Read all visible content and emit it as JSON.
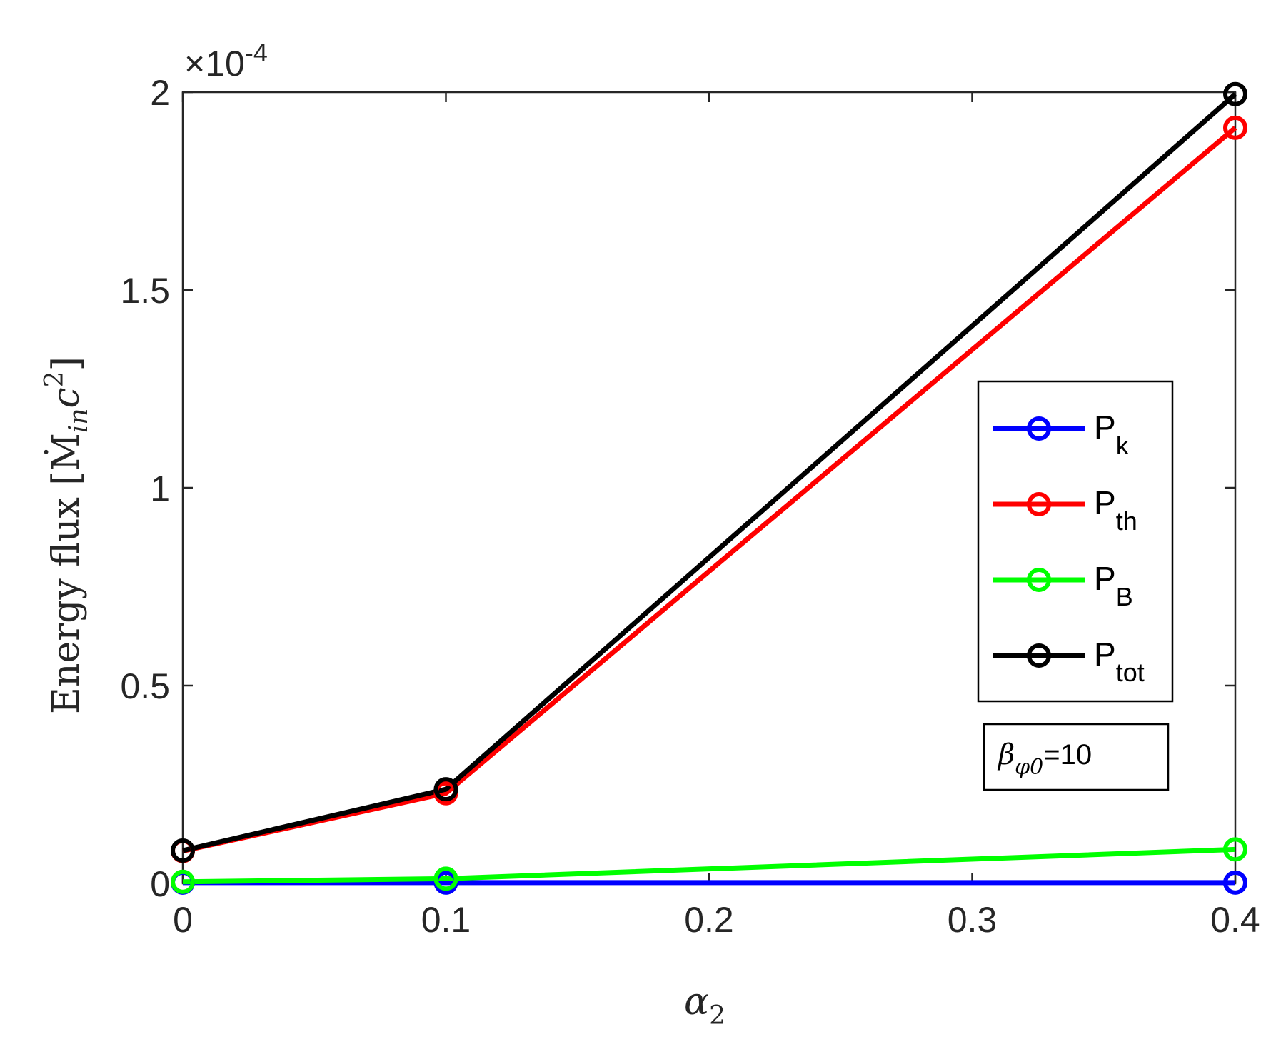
{
  "chart_data": {
    "type": "line",
    "x": [
      0,
      0.1,
      0.4
    ],
    "xlim": [
      0,
      0.4
    ],
    "ylim": [
      0,
      0.0002
    ],
    "x_ticks": [
      "0",
      "0.1",
      "0.2",
      "0.3",
      "0.4"
    ],
    "y_ticks": [
      "0",
      "0.5",
      "1",
      "1.5",
      "2"
    ],
    "y_exponent_label": "×10",
    "y_exponent_power": "-4",
    "xlabel_main": "α",
    "xlabel_sub": "2",
    "ylabel": "Energy flux [Ṁ",
    "ylabel_sub": "in",
    "ylabel_tail": "c",
    "ylabel_sup": "2",
    "ylabel_close": "]",
    "grid": false,
    "legend_position": "right",
    "series": [
      {
        "name": "P",
        "name_sub": "k",
        "color": "#0000ff",
        "values": [
          2e-07,
          2e-07,
          2e-07
        ]
      },
      {
        "name": "P",
        "name_sub": "th",
        "color": "#ff0000",
        "values": [
          8.2e-06,
          2.28e-05,
          0.000191
        ]
      },
      {
        "name": "P",
        "name_sub": "B",
        "color": "#00ff00",
        "values": [
          4e-07,
          1.2e-06,
          8.6e-06
        ]
      },
      {
        "name": "P",
        "name_sub": "tot",
        "color": "#000000",
        "values": [
          8.3e-06,
          2.38e-05,
          0.0001995
        ]
      }
    ],
    "annotation": {
      "symbol": "β",
      "sub": "φ0",
      "text": "=10"
    }
  }
}
